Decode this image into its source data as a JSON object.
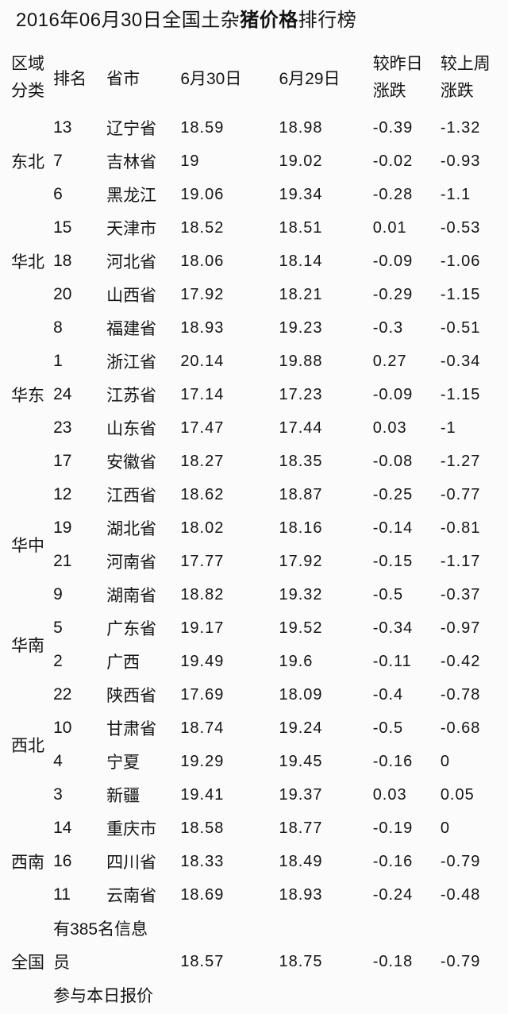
{
  "page": {
    "background": "#fbfbfb",
    "text_color": "#141414"
  },
  "title": {
    "prefix": "2016年06月30日全国土杂",
    "emphasis": "猪价格",
    "suffix": "排行榜"
  },
  "table": {
    "headers": {
      "region": "区域分类",
      "rank": "排名",
      "province": "省市",
      "today": "6月30日",
      "yesterday": "6月29日",
      "day_change": "较昨日涨跌",
      "week_change": "较上周涨跌"
    },
    "groups": [
      {
        "region": "东北",
        "rows": [
          {
            "rank": "13",
            "province": "辽宁省",
            "today": "18.59",
            "yesterday": "18.98",
            "day": "-0.39",
            "week": "-1.32"
          },
          {
            "rank": "7",
            "province": "吉林省",
            "today": "19",
            "yesterday": "19.02",
            "day": "-0.02",
            "week": "-0.93"
          },
          {
            "rank": "6",
            "province": "黑龙江",
            "today": "19.06",
            "yesterday": "19.34",
            "day": "-0.28",
            "week": "-1.1"
          }
        ]
      },
      {
        "region": "华北",
        "rows": [
          {
            "rank": "15",
            "province": "天津市",
            "today": "18.52",
            "yesterday": "18.51",
            "day": "0.01",
            "week": "-0.53"
          },
          {
            "rank": "18",
            "province": "河北省",
            "today": "18.06",
            "yesterday": "18.14",
            "day": "-0.09",
            "week": "-1.06"
          },
          {
            "rank": "20",
            "province": "山西省",
            "today": "17.92",
            "yesterday": "18.21",
            "day": "-0.29",
            "week": "-1.15"
          }
        ]
      },
      {
        "region": "华东",
        "rows": [
          {
            "rank": "8",
            "province": "福建省",
            "today": "18.93",
            "yesterday": "19.23",
            "day": "-0.3",
            "week": "-0.51"
          },
          {
            "rank": "1",
            "province": "浙江省",
            "today": "20.14",
            "yesterday": "19.88",
            "day": "0.27",
            "week": "-0.34"
          },
          {
            "rank": "24",
            "province": "江苏省",
            "today": "17.14",
            "yesterday": "17.23",
            "day": "-0.09",
            "week": "-1.15"
          },
          {
            "rank": "23",
            "province": "山东省",
            "today": "17.47",
            "yesterday": "17.44",
            "day": "0.03",
            "week": "-1"
          },
          {
            "rank": "17",
            "province": "安徽省",
            "today": "18.27",
            "yesterday": "18.35",
            "day": "-0.08",
            "week": "-1.27"
          }
        ]
      },
      {
        "region": "华中",
        "rows": [
          {
            "rank": "12",
            "province": "江西省",
            "today": "18.62",
            "yesterday": "18.87",
            "day": "-0.25",
            "week": "-0.77"
          },
          {
            "rank": "19",
            "province": "湖北省",
            "today": "18.02",
            "yesterday": "18.16",
            "day": "-0.14",
            "week": "-0.81"
          },
          {
            "rank": "21",
            "province": "河南省",
            "today": "17.77",
            "yesterday": "17.92",
            "day": "-0.15",
            "week": "-1.17"
          },
          {
            "rank": "9",
            "province": "湖南省",
            "today": "18.82",
            "yesterday": "19.32",
            "day": "-0.5",
            "week": "-0.37"
          }
        ]
      },
      {
        "region": "华南",
        "rows": [
          {
            "rank": "5",
            "province": "广东省",
            "today": "19.17",
            "yesterday": "19.52",
            "day": "-0.34",
            "week": "-0.97"
          },
          {
            "rank": "2",
            "province": "广西",
            "today": "19.49",
            "yesterday": "19.6",
            "day": "-0.11",
            "week": "-0.42"
          }
        ]
      },
      {
        "region": "西北",
        "rows": [
          {
            "rank": "22",
            "province": "陕西省",
            "today": "17.69",
            "yesterday": "18.09",
            "day": "-0.4",
            "week": "-0.78"
          },
          {
            "rank": "10",
            "province": "甘肃省",
            "today": "18.74",
            "yesterday": "19.24",
            "day": "-0.5",
            "week": "-0.68"
          },
          {
            "rank": "4",
            "province": "宁夏",
            "today": "19.29",
            "yesterday": "19.45",
            "day": "-0.16",
            "week": "0"
          },
          {
            "rank": "3",
            "province": "新疆",
            "today": "19.41",
            "yesterday": "19.37",
            "day": "0.03",
            "week": "0.05"
          }
        ]
      },
      {
        "region": "西南",
        "rows": [
          {
            "rank": "14",
            "province": "重庆市",
            "today": "18.58",
            "yesterday": "18.77",
            "day": "-0.19",
            "week": "0"
          },
          {
            "rank": "16",
            "province": "四川省",
            "today": "18.33",
            "yesterday": "18.49",
            "day": "-0.16",
            "week": "-0.79"
          },
          {
            "rank": "11",
            "province": "云南省",
            "today": "18.69",
            "yesterday": "18.93",
            "day": "-0.24",
            "week": "-0.48"
          }
        ]
      }
    ],
    "national": {
      "region": "全国",
      "note_lines": [
        "有385名信息",
        "员",
        "参与本日报价"
      ],
      "today": "18.57",
      "yesterday": "18.75",
      "day": "-0.18",
      "week": "-0.79"
    }
  }
}
